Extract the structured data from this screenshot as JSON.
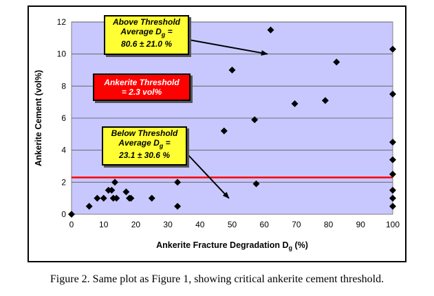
{
  "chart_data": {
    "type": "scatter",
    "xlabel": "Ankerite Fracture Degradation D",
    "xlabel_sub": "g",
    "xlabel_unit": "  (%)",
    "ylabel": "Ankerite Cement  (vol%)",
    "xlim": [
      0,
      100
    ],
    "ylim": [
      0,
      12
    ],
    "x_ticks": [
      0,
      10,
      20,
      30,
      40,
      50,
      60,
      70,
      80,
      90,
      100
    ],
    "y_ticks": [
      0,
      2,
      4,
      6,
      8,
      10,
      12
    ],
    "grid": "horizontal",
    "plot_background": "#c8c8ff",
    "marker_color": "#000000",
    "threshold": {
      "value": 2.3,
      "color": "#ff0000"
    },
    "points": [
      [
        0,
        0
      ],
      [
        5.5,
        0.5
      ],
      [
        8,
        1
      ],
      [
        10,
        1
      ],
      [
        11.5,
        1.5
      ],
      [
        12.5,
        1.5
      ],
      [
        13,
        1
      ],
      [
        13.5,
        2
      ],
      [
        14,
        1
      ],
      [
        17,
        1.4
      ],
      [
        18,
        1
      ],
      [
        18.5,
        1
      ],
      [
        25,
        1
      ],
      [
        33,
        0.5
      ],
      [
        33,
        2
      ],
      [
        47.5,
        5.2
      ],
      [
        50,
        9
      ],
      [
        57,
        5.9
      ],
      [
        57.5,
        1.9
      ],
      [
        62,
        11.5
      ],
      [
        69.5,
        6.9
      ],
      [
        79,
        7.1
      ],
      [
        82.5,
        9.5
      ],
      [
        100,
        10.3
      ],
      [
        100,
        7.5
      ],
      [
        100,
        4.5
      ],
      [
        100,
        3.4
      ],
      [
        100,
        2.5
      ],
      [
        100,
        1.5
      ],
      [
        100,
        1
      ],
      [
        100,
        0.5
      ]
    ],
    "annotations": [
      {
        "id": "above",
        "lines": [
          "Above Threshold",
          "Average D",
          "80.6 ± 21.0 %"
        ],
        "sub": "g",
        "suffix": " =",
        "color": "yellow",
        "arrow_to": [
          61,
          10
        ]
      },
      {
        "id": "threshold",
        "lines": [
          "Ankerite Threshold",
          "= 2.3 vol%"
        ],
        "color": "red"
      },
      {
        "id": "below",
        "lines": [
          "Below Threshold",
          "Average D",
          "23.1 ± 30.6 %"
        ],
        "sub": "g",
        "suffix": " =",
        "color": "yellow",
        "arrow_to": [
          49,
          1
        ]
      }
    ]
  },
  "caption": "Figure 2.  Same plot as Figure 1, showing critical ankerite cement threshold."
}
